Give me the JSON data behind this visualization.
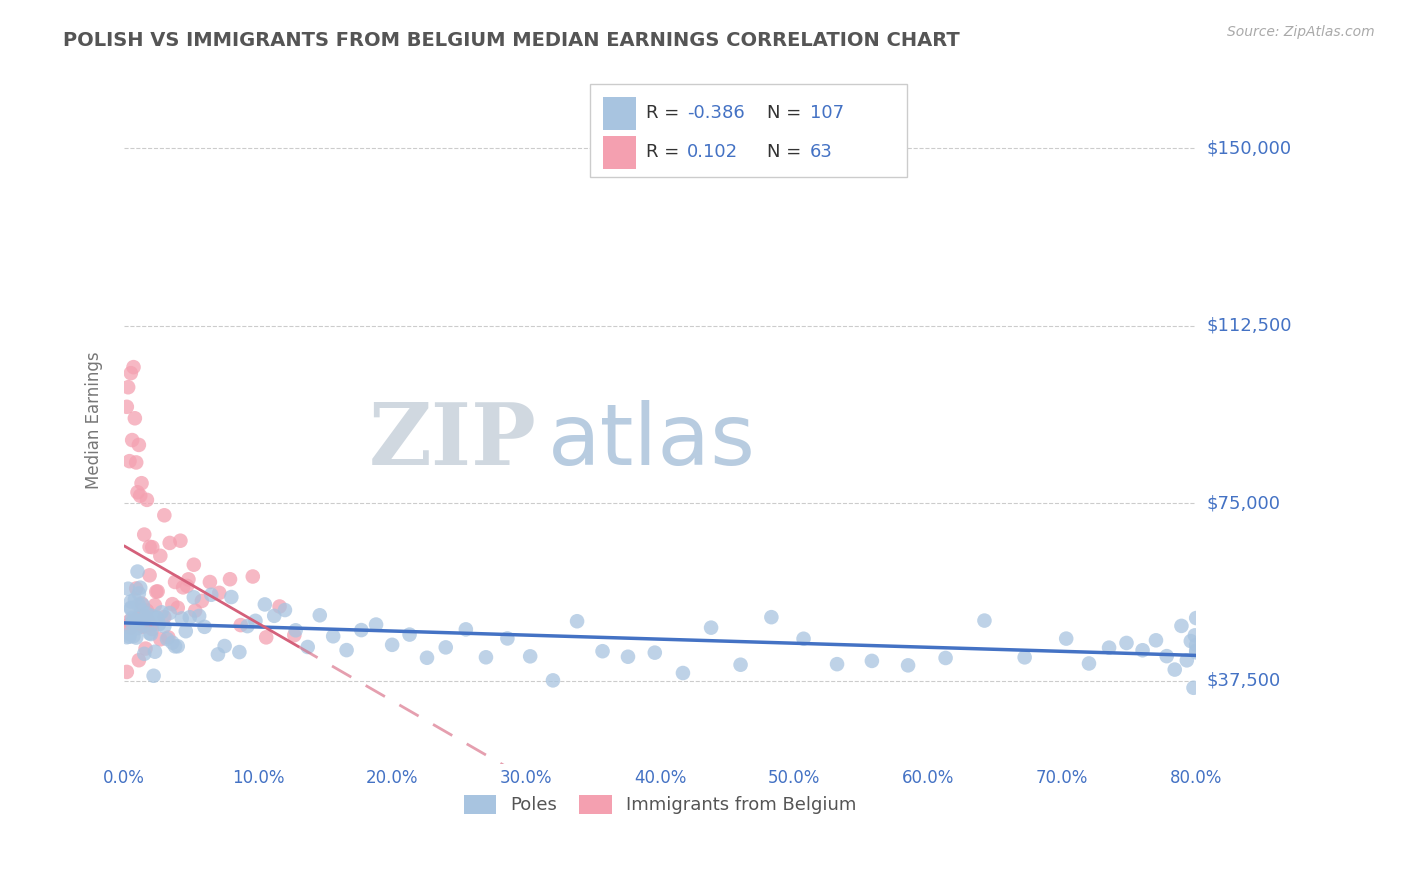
{
  "title": "POLISH VS IMMIGRANTS FROM BELGIUM MEDIAN EARNINGS CORRELATION CHART",
  "source_text": "Source: ZipAtlas.com",
  "ylabel": "Median Earnings",
  "xlim": [
    0.0,
    0.8
  ],
  "ylim": [
    20000,
    165000
  ],
  "yticks": [
    37500,
    75000,
    112500,
    150000
  ],
  "ytick_labels": [
    "$37,500",
    "$75,000",
    "$112,500",
    "$150,000"
  ],
  "xticks": [
    0.0,
    0.1,
    0.2,
    0.3,
    0.4,
    0.5,
    0.6,
    0.7,
    0.8
  ],
  "xtick_labels": [
    "0.0%",
    "10.0%",
    "20.0%",
    "30.0%",
    "40.0%",
    "50.0%",
    "60.0%",
    "70.0%",
    "80.0%"
  ],
  "poles_R": -0.386,
  "poles_N": 107,
  "belgium_R": 0.102,
  "belgium_N": 63,
  "poles_color": "#a8c4e0",
  "poles_line_color": "#4472c4",
  "belgium_color": "#f4a0b0",
  "belgium_line_color": "#d4607a",
  "title_color": "#555555",
  "tick_label_color": "#4472c4",
  "legend_R_color": "#4472c4",
  "legend_N_color": "#4472c4",
  "watermark_zip_color": "#d0d8e0",
  "watermark_atlas_color": "#b8cce0",
  "legend_label_poles": "Poles",
  "legend_label_belgium": "Immigrants from Belgium",
  "poles_x": [
    0.002,
    0.003,
    0.004,
    0.004,
    0.005,
    0.005,
    0.005,
    0.006,
    0.006,
    0.007,
    0.007,
    0.008,
    0.008,
    0.009,
    0.009,
    0.01,
    0.01,
    0.011,
    0.011,
    0.012,
    0.012,
    0.013,
    0.013,
    0.014,
    0.015,
    0.016,
    0.017,
    0.018,
    0.019,
    0.02,
    0.021,
    0.022,
    0.023,
    0.024,
    0.025,
    0.026,
    0.028,
    0.03,
    0.032,
    0.034,
    0.036,
    0.038,
    0.04,
    0.043,
    0.046,
    0.049,
    0.052,
    0.056,
    0.06,
    0.065,
    0.07,
    0.075,
    0.08,
    0.086,
    0.092,
    0.098,
    0.105,
    0.112,
    0.12,
    0.128,
    0.137,
    0.146,
    0.156,
    0.166,
    0.177,
    0.188,
    0.2,
    0.213,
    0.226,
    0.24,
    0.255,
    0.27,
    0.286,
    0.303,
    0.32,
    0.338,
    0.357,
    0.376,
    0.396,
    0.417,
    0.438,
    0.46,
    0.483,
    0.507,
    0.532,
    0.558,
    0.585,
    0.613,
    0.642,
    0.672,
    0.703,
    0.72,
    0.735,
    0.748,
    0.76,
    0.77,
    0.778,
    0.784,
    0.789,
    0.793,
    0.796,
    0.798,
    0.799,
    0.8,
    0.8,
    0.8,
    0.8
  ],
  "poles_y": [
    50000,
    54000,
    46000,
    52000,
    56000,
    48000,
    60000,
    51000,
    47000,
    53000,
    49000,
    55000,
    46000,
    52000,
    48000,
    50000,
    54000,
    47000,
    53000,
    49000,
    55000,
    48000,
    52000,
    50000,
    47000,
    53000,
    49000,
    55000,
    48000,
    50000,
    52000,
    47000,
    49000,
    53000,
    48000,
    50000,
    52000,
    47000,
    49000,
    51000,
    48000,
    50000,
    46000,
    49000,
    47000,
    51000,
    48000,
    50000,
    46000,
    49000,
    47000,
    48000,
    50000,
    46000,
    49000,
    47000,
    51000,
    46000,
    48000,
    45000,
    47000,
    49000,
    46000,
    48000,
    44000,
    47000,
    45000,
    48000,
    46000,
    44000,
    47000,
    45000,
    43000,
    46000,
    44000,
    47000,
    45000,
    43000,
    46000,
    44000,
    45000,
    43000,
    46000,
    44000,
    42000,
    45000,
    43000,
    46000,
    44000,
    42000,
    43000,
    45000,
    44000,
    42000,
    45000,
    43000,
    46000,
    44000,
    48000,
    43000,
    44000,
    42000,
    45000,
    43000,
    44000,
    45000,
    43000
  ],
  "belgium_x": [
    0.002,
    0.003,
    0.004,
    0.005,
    0.006,
    0.007,
    0.008,
    0.009,
    0.01,
    0.011,
    0.012,
    0.013,
    0.014,
    0.015,
    0.016,
    0.017,
    0.018,
    0.019,
    0.02,
    0.021,
    0.023,
    0.025,
    0.027,
    0.03,
    0.033,
    0.036,
    0.04,
    0.044,
    0.048,
    0.053,
    0.002,
    0.003,
    0.004,
    0.005,
    0.006,
    0.007,
    0.008,
    0.009,
    0.01,
    0.011,
    0.012,
    0.013,
    0.015,
    0.017,
    0.019,
    0.021,
    0.024,
    0.027,
    0.03,
    0.034,
    0.038,
    0.042,
    0.047,
    0.052,
    0.058,
    0.064,
    0.071,
    0.079,
    0.087,
    0.096,
    0.106,
    0.116,
    0.127
  ],
  "belgium_y": [
    45000,
    48000,
    55000,
    50000,
    46000,
    52000,
    48000,
    54000,
    50000,
    46000,
    52000,
    48000,
    55000,
    50000,
    46000,
    52000,
    48000,
    55000,
    50000,
    46000,
    52000,
    55000,
    48000,
    54000,
    50000,
    56000,
    52000,
    55000,
    58000,
    54000,
    90000,
    95000,
    85000,
    105000,
    88000,
    100000,
    92000,
    82000,
    78000,
    86000,
    72000,
    80000,
    68000,
    75000,
    65000,
    70000,
    62000,
    67000,
    72000,
    65000,
    60000,
    63000,
    58000,
    62000,
    55000,
    58000,
    54000,
    57000,
    52000,
    55000,
    50000,
    53000,
    48000
  ]
}
